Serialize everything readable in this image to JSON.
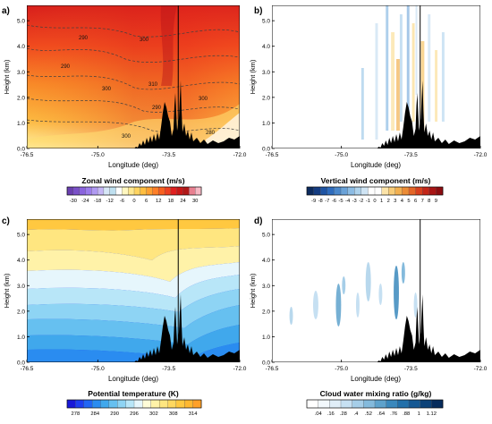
{
  "figure": {
    "ylabel": "Height (km)",
    "xlabel": "Longitude (deg)",
    "x_ticks": [
      "-76.5",
      "-75.0",
      "-73.5",
      "-72.0"
    ],
    "y_ticks": [
      "0.0",
      "1.0",
      "2.0",
      "3.0",
      "4.0",
      "5.0"
    ]
  },
  "chart_data": [
    {
      "type": "heatmap",
      "panel": "a)",
      "xlabel": "Longitude (deg)",
      "ylabel": "Height (km)",
      "xlim": [
        -76.5,
        -72.0
      ],
      "ylim": [
        0.0,
        5.6
      ],
      "colorbar_title": "Zonal wind component (m/s)",
      "colorbar_ticks": [
        "-30",
        "-24",
        "-18",
        "-12",
        "-6",
        "0",
        "6",
        "12",
        "18",
        "24",
        "30"
      ],
      "contour_labels": [
        "290",
        "300",
        "290",
        "300",
        "310",
        "300",
        "290",
        "300",
        "280"
      ],
      "vertical_line_longitude": -73.3
    },
    {
      "type": "heatmap",
      "panel": "b)",
      "xlabel": "Longitude (deg)",
      "ylabel": "Height (km)",
      "xlim": [
        -76.5,
        -72.0
      ],
      "ylim": [
        0.0,
        5.6
      ],
      "colorbar_title": "Vertical wind component (m/s)",
      "colorbar_ticks": [
        "-9",
        "-8",
        "-7",
        "-6",
        "-5",
        "-4",
        "-3",
        "-2",
        "-1",
        "0",
        "1",
        "2",
        "3",
        "4",
        "5",
        "6",
        "7",
        "8",
        "9"
      ],
      "vertical_line_longitude": -73.3
    },
    {
      "type": "heatmap",
      "panel": "c)",
      "xlabel": "Longitude (deg)",
      "ylabel": "Height (km)",
      "xlim": [
        -76.5,
        -72.0
      ],
      "ylim": [
        0.0,
        5.6
      ],
      "colorbar_title": "Potential temperature (K)",
      "colorbar_ticks": [
        "278",
        "284",
        "290",
        "296",
        "302",
        "308",
        "314"
      ],
      "vertical_line_longitude": -73.3
    },
    {
      "type": "heatmap",
      "panel": "d)",
      "xlabel": "Longitude (deg)",
      "ylabel": "Height (km)",
      "xlim": [
        -76.5,
        -72.0
      ],
      "ylim": [
        0.0,
        5.6
      ],
      "colorbar_title": "Cloud water mixing ratio (g/kg)",
      "colorbar_ticks": [
        ".04",
        ".16",
        ".28",
        ".4",
        ".52",
        ".64",
        ".76",
        ".88",
        "1",
        "1.12"
      ],
      "vertical_line_longitude": -73.3
    }
  ],
  "colors": {
    "zonal": [
      "#6a3fb0",
      "#7a50c8",
      "#8a64de",
      "#9c7cec",
      "#b09af2",
      "#c6b8f6",
      "#d6e6f6",
      "#bfe0f0",
      "#ffffff",
      "#fff7c0",
      "#ffe890",
      "#ffd460",
      "#ffbe40",
      "#ffa030",
      "#ff7f28",
      "#f86020",
      "#ee4020",
      "#e02020",
      "#c81818",
      "#b01818",
      "#e88090",
      "#f6b8c4"
    ],
    "vertical": [
      "#0c2a5e",
      "#143c82",
      "#1e54a4",
      "#2e6cbe",
      "#4a88cc",
      "#6aa2d8",
      "#8cbce4",
      "#aed2ec",
      "#cfe4f4",
      "#ffffff",
      "#ffffff",
      "#fbe3a8",
      "#f8cc78",
      "#f2b050",
      "#ec8c36",
      "#e46628",
      "#d8401e",
      "#c42618",
      "#a81414",
      "#8c0c10"
    ],
    "potential": [
      "#1818d8",
      "#1e3ef0",
      "#2266f4",
      "#2a8cf0",
      "#40a8ec",
      "#66c0f0",
      "#8ed4f4",
      "#b8e6f8",
      "#e6f6fc",
      "#fffcd8",
      "#fff2a8",
      "#ffe680",
      "#ffd860",
      "#ffc840",
      "#ffb830",
      "#ffa028"
    ],
    "cloud": [
      "#ffffff",
      "#f2f8fc",
      "#e0eef8",
      "#c6e0f2",
      "#a6cee8",
      "#84badc",
      "#5ea2cc",
      "#3a88bc",
      "#2270aa",
      "#145894",
      "#0c4278",
      "#062c5c"
    ]
  }
}
